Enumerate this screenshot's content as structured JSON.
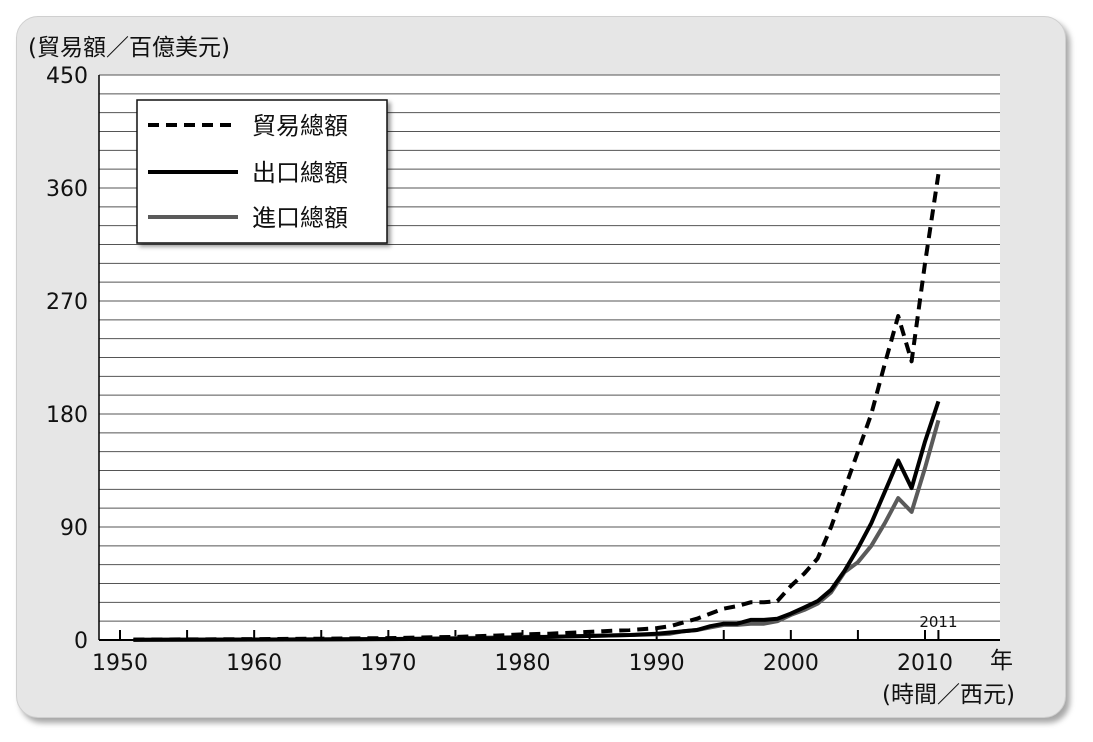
{
  "chart_data": {
    "type": "line",
    "ylabel": "(貿易額／百億美元)",
    "xlabel_unit": "年",
    "xlabel": "(時間／西元)",
    "ylim": [
      0,
      450
    ],
    "xlim": [
      1950,
      2013
    ],
    "y_ticks": [
      0,
      90,
      180,
      270,
      360,
      450
    ],
    "x_tick_labels": [
      1950,
      1960,
      1970,
      1980,
      1990,
      2000,
      2010
    ],
    "annotation": "2011",
    "grid": true,
    "legend_position": "top-left",
    "x": [
      1951,
      1955,
      1960,
      1965,
      1970,
      1975,
      1978,
      1980,
      1982,
      1984,
      1986,
      1988,
      1990,
      1991,
      1992,
      1993,
      1994,
      1995,
      1996,
      1997,
      1998,
      1999,
      2000,
      2001,
      2002,
      2003,
      2004,
      2005,
      2006,
      2007,
      2008,
      2009,
      2010,
      2011
    ],
    "series": [
      {
        "name": "貿易總額",
        "style": "dashed",
        "color": "#000000",
        "values": [
          0.3,
          0.5,
          0.7,
          1,
          1.5,
          2.5,
          3.5,
          4.5,
          5,
          6,
          7,
          8,
          9.5,
          11,
          14,
          17,
          21,
          25,
          27,
          30,
          30,
          31,
          43,
          53,
          65,
          90,
          120,
          150,
          180,
          220,
          258,
          222,
          300,
          371
        ]
      },
      {
        "name": "出口總額",
        "style": "solid",
        "color": "#000000",
        "values": [
          0.2,
          0.3,
          0.4,
          0.5,
          0.7,
          1,
          1.5,
          2,
          2.5,
          3,
          3.5,
          4,
          5,
          6,
          7,
          8,
          11,
          13,
          13,
          16,
          16,
          17,
          21,
          26,
          31,
          40,
          55,
          73,
          93,
          118,
          143,
          121,
          158,
          190
        ]
      },
      {
        "name": "進口總額",
        "style": "solid",
        "color": "#5a5a5a",
        "values": [
          0.1,
          0.2,
          0.3,
          0.5,
          0.8,
          1.5,
          2,
          2.5,
          2.5,
          3,
          3.5,
          4,
          4.5,
          5,
          7,
          8,
          10,
          12,
          12,
          13,
          13,
          15,
          20,
          24,
          29,
          38,
          54,
          62,
          75,
          93,
          113,
          102,
          137,
          175
        ]
      }
    ]
  }
}
